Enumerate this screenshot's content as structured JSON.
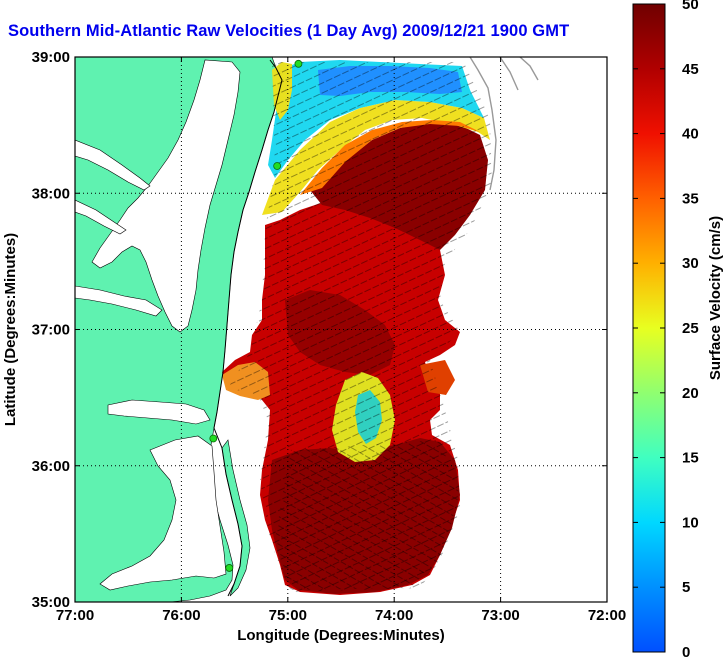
{
  "title": "Southern Mid-Atlantic Raw Velocities (1 Day Avg) 2009/12/21 1900 GMT",
  "colors": {
    "land": "#5ff2b0",
    "title": "#0000ee",
    "coast": "#000000",
    "bathymetry": "#999999",
    "station": "#22dd22"
  },
  "chart_data": {
    "type": "heatmap",
    "xlabel": "Longitude (Degrees:Minutes)",
    "ylabel": "Latitude (Degrees:Minutes)",
    "x_ticks": [
      "77:00",
      "76:00",
      "75:00",
      "74:00",
      "73:00",
      "72:00"
    ],
    "y_ticks": [
      "39:00",
      "38:00",
      "37:00",
      "36:00",
      "35:00"
    ],
    "xlim": [
      -77,
      -72
    ],
    "ylim": [
      35,
      39
    ],
    "grid": true,
    "colorbar": {
      "label": "Surface Velocity (cm/s)",
      "min": 0,
      "max": 50,
      "ticks": [
        "0",
        "5",
        "10",
        "15",
        "20",
        "25",
        "30",
        "35",
        "40",
        "45",
        "50"
      ]
    },
    "stations": [
      {
        "lon": -74.9,
        "lat": 38.95
      },
      {
        "lon": -75.1,
        "lat": 38.2
      },
      {
        "lon": -75.7,
        "lat": 36.2
      },
      {
        "lon": -75.55,
        "lat": 35.25
      }
    ]
  }
}
